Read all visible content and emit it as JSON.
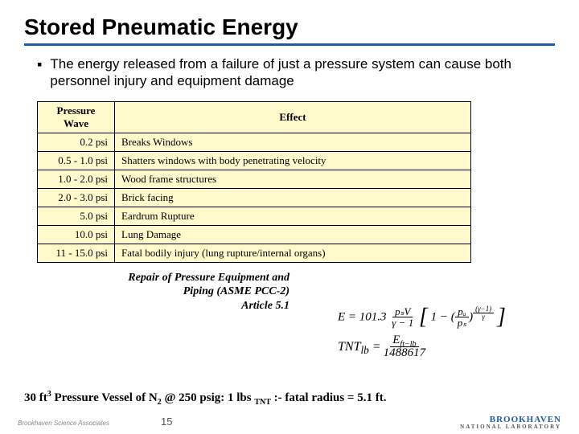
{
  "title": "Stored Pneumatic Energy",
  "title_underline_color": "#1e5aa8",
  "bullet_text": "The energy released from a failure of just a pressure system can cause both personnel injury and equipment damage",
  "table": {
    "header_bg": "#fff9cc",
    "cell_bg": "#fff9cc",
    "border_color": "#000000",
    "columns": [
      "Pressure Wave",
      "Effect"
    ],
    "rows": [
      [
        "0.2 psi",
        "Breaks Windows"
      ],
      [
        "0.5 - 1.0 psi",
        "Shatters windows with body penetrating velocity"
      ],
      [
        "1.0 - 2.0 psi",
        "Wood frame structures"
      ],
      [
        "2.0 - 3.0 psi",
        "Brick facing"
      ],
      [
        "5.0 psi",
        "Eardrum Rupture"
      ],
      [
        "10.0 psi",
        "Lung Damage"
      ],
      [
        "11 - 15.0 psi",
        "Fatal bodily injury (lung rupture/internal organs)"
      ]
    ]
  },
  "reference": {
    "line1": "Repair of Pressure Equipment and",
    "line2": "Piping (ASME PCC-2)",
    "line3": "Article 5.1"
  },
  "formulas": {
    "eq1_label": "E = 101.3",
    "eq1_frac1_num": "pₛV",
    "eq1_frac1_den": "γ − 1",
    "eq1_mid": "· 1 −",
    "eq1_frac2_num": "pₐ",
    "eq1_frac2_den": "pₛ",
    "eq1_exp_num": "(γ−1)",
    "eq1_exp_den": "γ",
    "eq2_lhs": "TNT",
    "eq2_sub": "lb",
    "eq2_num": "E",
    "eq2_num_sub": "ft−lb",
    "eq2_den": "1488617"
  },
  "footer_note_parts": {
    "p1": "30 ft",
    "p1_sup": "3",
    "p2": " Pressure Vessel of N",
    "p2_sub": "2",
    "p3": " @ 250 psig: 1 lbs ",
    "p3_sub": "TNT",
    "p4": " :- fatal radius = 5.1 ft."
  },
  "page_number": "15",
  "footer_left": "Brookhaven Science Associates",
  "footer_logo": {
    "main": "BROOKHAVEN",
    "sub": "NATIONAL LABORATORY"
  }
}
